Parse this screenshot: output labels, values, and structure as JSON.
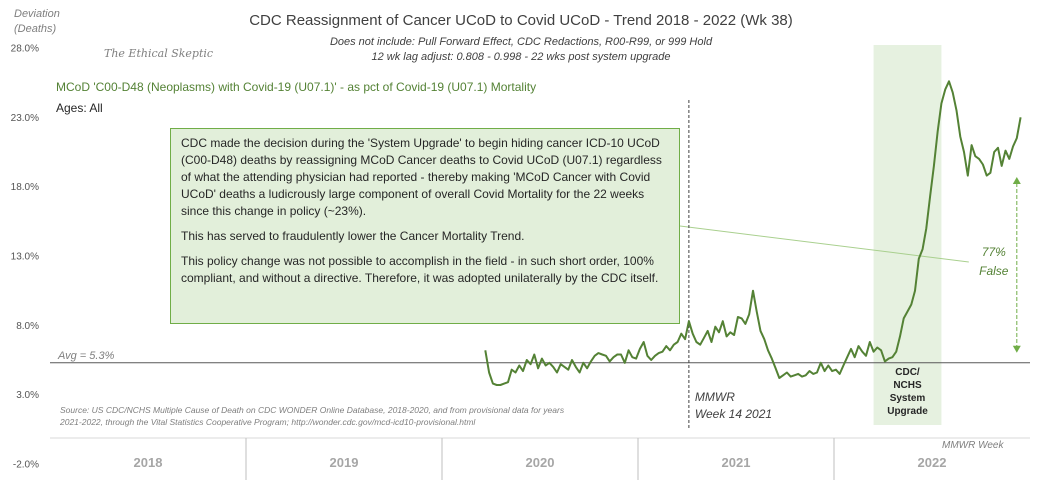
{
  "chart_data": {
    "type": "line",
    "title": "CDC Reassignment of Cancer  UCoD to Covid UCoD - Trend  2018 - 2022 (Wk 38)",
    "subtitle_lines": [
      "Does not include: Pull Forward Effect,  CDC Redactions, R00-R99, or 999 Hold",
      "12 wk lag adjust: 0.808 - 0.998 - 22 wks post system upgrade"
    ],
    "ylabel_lines": [
      "Deviation",
      "(Deaths)"
    ],
    "watermark": "The Ethical Skeptic",
    "series_label": "MCoD 'C00-D48  (Neoplasms) with Covid-19 (U07.1)' - as pct of Covid-19 (U07.1) Mortality",
    "ages_label": "Ages: All",
    "y_ticks": [
      "28.0%",
      "23.0%",
      "18.0%",
      "13.0%",
      "8.0%",
      "3.0%",
      "-2.0%"
    ],
    "ylim": [
      -2.0,
      28.0
    ],
    "x_categories": [
      "2018",
      "2019",
      "2020",
      "2021",
      "2022"
    ],
    "x_unit": "MMWR Week index (1 = first week of 2018)",
    "avg_label": "Avg = 5.3%",
    "avg_value": 5.3,
    "series": [
      {
        "name": "Covid-19 share with cancer MCoD (%)",
        "color": "#548235",
        "x": [
          116,
          117,
          118,
          119,
          120,
          121,
          122,
          123,
          124,
          125,
          126,
          127,
          128,
          129,
          130,
          131,
          132,
          133,
          134,
          135,
          136,
          137,
          138,
          139,
          140,
          141,
          142,
          143,
          144,
          145,
          146,
          147,
          148,
          149,
          150,
          151,
          152,
          153,
          154,
          155,
          156,
          157,
          158,
          159,
          160,
          161,
          162,
          163,
          164,
          165,
          166,
          167,
          168,
          169,
          170,
          171,
          172,
          173,
          174,
          175,
          176,
          177,
          178,
          179,
          180,
          181,
          182,
          183,
          184,
          185,
          186,
          187,
          188,
          189,
          190,
          191,
          192,
          193,
          194,
          195,
          196,
          197,
          198,
          199,
          200,
          201,
          202,
          203,
          204,
          205,
          206,
          207,
          208,
          209,
          210,
          211,
          212,
          213,
          214,
          215,
          216,
          217,
          218,
          219,
          220,
          221,
          222,
          223,
          224,
          225,
          226,
          227,
          228,
          229,
          230,
          231,
          232,
          233,
          234,
          235,
          236,
          237,
          238,
          239,
          240,
          241,
          242,
          243,
          244,
          245,
          246,
          247,
          248,
          249,
          250,
          251,
          252,
          253,
          254,
          255,
          256,
          257,
          258
        ],
        "values": [
          6.2,
          4.6,
          3.8,
          3.7,
          3.7,
          3.8,
          3.9,
          4.8,
          4.6,
          5.1,
          4.7,
          5.5,
          5.2,
          5.9,
          4.9,
          5.6,
          5.1,
          5.3,
          5.0,
          4.6,
          5.2,
          5.0,
          4.8,
          5.5,
          5.0,
          4.6,
          5.3,
          4.9,
          5.4,
          5.8,
          6.0,
          5.9,
          5.8,
          5.4,
          5.7,
          5.9,
          5.9,
          5.3,
          6.2,
          5.7,
          5.6,
          6.3,
          6.8,
          5.8,
          5.5,
          5.8,
          6.0,
          6.1,
          6.5,
          6.2,
          6.6,
          6.8,
          7.4,
          7.0,
          8.3,
          7.4,
          6.8,
          6.6,
          7.1,
          7.6,
          6.8,
          7.9,
          7.5,
          8.3,
          7.2,
          7.5,
          7.3,
          8.6,
          8.5,
          8.1,
          8.8,
          10.5,
          9.0,
          7.6,
          7.0,
          6.2,
          5.6,
          4.9,
          4.2,
          4.4,
          4.6,
          4.3,
          4.4,
          4.5,
          4.3,
          4.4,
          4.7,
          4.5,
          4.6,
          5.3,
          4.7,
          5.1,
          4.7,
          4.8,
          4.5,
          5.1,
          5.7,
          6.3,
          5.7,
          6.5,
          6.1,
          5.8,
          6.8,
          6.1,
          6.4,
          6.2,
          5.4,
          5.6,
          5.7,
          6.1,
          7.2,
          8.5,
          9.0,
          9.5,
          10.5,
          12.8,
          13.5,
          15.0,
          17.3,
          19.5,
          22.0,
          24.0,
          25.0,
          25.6,
          24.8,
          23.5,
          21.6,
          20.5,
          18.8,
          21.0,
          20.2,
          20.0,
          19.6,
          18.8,
          19.0,
          20.5,
          20.8,
          19.5,
          20.6,
          20.0,
          20.9,
          21.5,
          23.0
        ]
      }
    ],
    "annotations": {
      "mmwr_week_14": {
        "lines": [
          "MMWR",
          "Week 14 2021"
        ],
        "week": 170
      },
      "system_upgrade": {
        "lines": [
          "CDC/",
          "NCHS",
          "System",
          "Upgrade"
        ],
        "start_week": 219,
        "end_week": 237
      },
      "false_share": {
        "lines": [
          "77%",
          "False"
        ],
        "from_value": 18.7,
        "to_value": 5.3,
        "week": 257
      },
      "mmwr_week_axis": "MMWR Week"
    },
    "callout": [
      "CDC made the decision during the 'System Upgrade' to begin hiding cancer ICD-10 UCoD (C00-D48)  deaths by reassigning MCoD Cancer deaths to Covid UCoD (U07.1)  regardless of what the attending physician had reported - thereby making 'MCoD Cancer with Covid UCoD' deaths a ludicrously large component of overall Covid Mortality for the 22  weeks since this change in policy (~23%).",
      "This has served to fraudulently lower the Cancer Mortality Trend.",
      "This policy change was not possible to accomplish in the field - in such short order, 100% compliant, and without a directive. Therefore, it was adopted unilaterally by the CDC itself."
    ],
    "source": [
      "Source: US CDC/NCHS Multiple Cause of Death on CDC WONDER Online Database, 2018-2020, and from provisional data for years",
      "2021-2022, through the Vital Statistics Cooperative Program; http://wonder.cdc.gov/mcd-icd10-provisional.html"
    ],
    "colors": {
      "line": "#548235",
      "band": "#e2efda",
      "callout_border": "#70ad47"
    }
  }
}
